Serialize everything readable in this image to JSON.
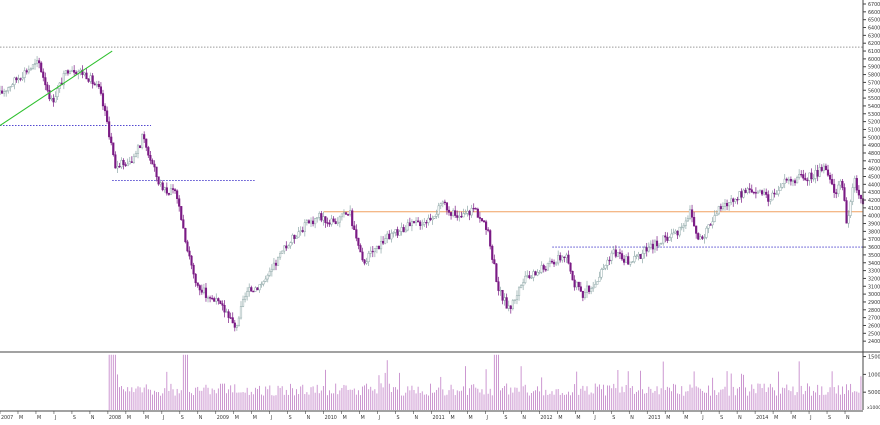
{
  "chart_data": {
    "type": "candlestick",
    "title": "",
    "xlabel": "",
    "ylabel": "",
    "ylim": [
      2300,
      6700
    ],
    "volume_ylim": [
      0,
      16000
    ],
    "y_ticks": [
      2400,
      2500,
      2600,
      2700,
      2800,
      2900,
      3000,
      3100,
      3200,
      3300,
      3400,
      3500,
      3600,
      3700,
      3800,
      3900,
      4000,
      4100,
      4200,
      4300,
      4400,
      4500,
      4600,
      4700,
      4800,
      4900,
      5000,
      5100,
      5200,
      5300,
      5400,
      5500,
      5600,
      5700,
      5800,
      5900,
      6000,
      6100,
      6200,
      6300,
      6400,
      6500,
      6600,
      6700
    ],
    "volume_ticks": [
      5000,
      10000,
      15000
    ],
    "volume_unit_label": "x1000",
    "x_ticks": [
      "2007",
      "M",
      "M",
      "J",
      "S",
      "N",
      "2008",
      "M",
      "M",
      "J",
      "S",
      "N",
      "2009",
      "M",
      "M",
      "J",
      "S",
      "N",
      "2010",
      "M",
      "M",
      "J",
      "S",
      "N",
      "2011",
      "M",
      "M",
      "J",
      "S",
      "N",
      "2012",
      "M",
      "M",
      "J",
      "S",
      "N",
      "2013",
      "M",
      "M",
      "J",
      "S",
      "N",
      "2014",
      "M",
      "M",
      "J",
      "S",
      "N"
    ],
    "anchors": [
      {
        "t": 0,
        "v": 5550
      },
      {
        "t": 0.03,
        "v": 5850
      },
      {
        "t": 0.045,
        "v": 5950
      },
      {
        "t": 0.06,
        "v": 5450
      },
      {
        "t": 0.08,
        "v": 5900
      },
      {
        "t": 0.1,
        "v": 5800
      },
      {
        "t": 0.115,
        "v": 5600
      },
      {
        "t": 0.125,
        "v": 5150
      },
      {
        "t": 0.133,
        "v": 4650
      },
      {
        "t": 0.155,
        "v": 4700
      },
      {
        "t": 0.165,
        "v": 5000
      },
      {
        "t": 0.185,
        "v": 4400
      },
      {
        "t": 0.205,
        "v": 4250
      },
      {
        "t": 0.215,
        "v": 3700
      },
      {
        "t": 0.228,
        "v": 3100
      },
      {
        "t": 0.245,
        "v": 2950
      },
      {
        "t": 0.265,
        "v": 2750
      },
      {
        "t": 0.272,
        "v": 2550
      },
      {
        "t": 0.285,
        "v": 3000
      },
      {
        "t": 0.31,
        "v": 3200
      },
      {
        "t": 0.325,
        "v": 3500
      },
      {
        "t": 0.345,
        "v": 3800
      },
      {
        "t": 0.37,
        "v": 4000
      },
      {
        "t": 0.385,
        "v": 3900
      },
      {
        "t": 0.405,
        "v": 4050
      },
      {
        "t": 0.42,
        "v": 3400
      },
      {
        "t": 0.445,
        "v": 3700
      },
      {
        "t": 0.47,
        "v": 3850
      },
      {
        "t": 0.495,
        "v": 3950
      },
      {
        "t": 0.515,
        "v": 4150
      },
      {
        "t": 0.53,
        "v": 3950
      },
      {
        "t": 0.55,
        "v": 4100
      },
      {
        "t": 0.565,
        "v": 3800
      },
      {
        "t": 0.578,
        "v": 3050
      },
      {
        "t": 0.59,
        "v": 2800
      },
      {
        "t": 0.605,
        "v": 3150
      },
      {
        "t": 0.625,
        "v": 3300
      },
      {
        "t": 0.655,
        "v": 3500
      },
      {
        "t": 0.665,
        "v": 3150
      },
      {
        "t": 0.675,
        "v": 3000
      },
      {
        "t": 0.69,
        "v": 3150
      },
      {
        "t": 0.71,
        "v": 3550
      },
      {
        "t": 0.73,
        "v": 3400
      },
      {
        "t": 0.76,
        "v": 3650
      },
      {
        "t": 0.785,
        "v": 3800
      },
      {
        "t": 0.8,
        "v": 4050
      },
      {
        "t": 0.81,
        "v": 3650
      },
      {
        "t": 0.83,
        "v": 4050
      },
      {
        "t": 0.855,
        "v": 4250
      },
      {
        "t": 0.875,
        "v": 4350
      },
      {
        "t": 0.89,
        "v": 4200
      },
      {
        "t": 0.91,
        "v": 4450
      },
      {
        "t": 0.94,
        "v": 4500
      },
      {
        "t": 0.955,
        "v": 4600
      },
      {
        "t": 0.962,
        "v": 4450
      },
      {
        "t": 0.968,
        "v": 4300
      },
      {
        "t": 0.975,
        "v": 4500
      },
      {
        "t": 0.981,
        "v": 3900
      },
      {
        "t": 0.99,
        "v": 4450
      },
      {
        "t": 1.0,
        "v": 4150
      }
    ],
    "horizontal_levels": [
      {
        "value": 6150,
        "color": "#9a9a9a",
        "style": "dotted",
        "from": 0.0,
        "to": 1.0
      },
      {
        "value": 5150,
        "color": "#3b2fc9",
        "style": "dotted",
        "from": 0.0,
        "to": 0.175
      },
      {
        "value": 4450,
        "color": "#3b2fc9",
        "style": "dotted",
        "from": 0.13,
        "to": 0.295
      },
      {
        "value": 4050,
        "color": "#f0a060",
        "style": "solid",
        "from": 0.375,
        "to": 1.0
      },
      {
        "value": 3600,
        "color": "#3b2fc9",
        "style": "dotted",
        "from": 0.64,
        "to": 1.0
      }
    ],
    "trendline": {
      "from": {
        "t": 0.0,
        "v": 5150
      },
      "to": {
        "t": 0.13,
        "v": 6100
      },
      "color": "#2ec02e"
    },
    "colors": {
      "up": "#8fa8a8",
      "down": "#7a1a84",
      "volume": "#c07ec6"
    }
  }
}
